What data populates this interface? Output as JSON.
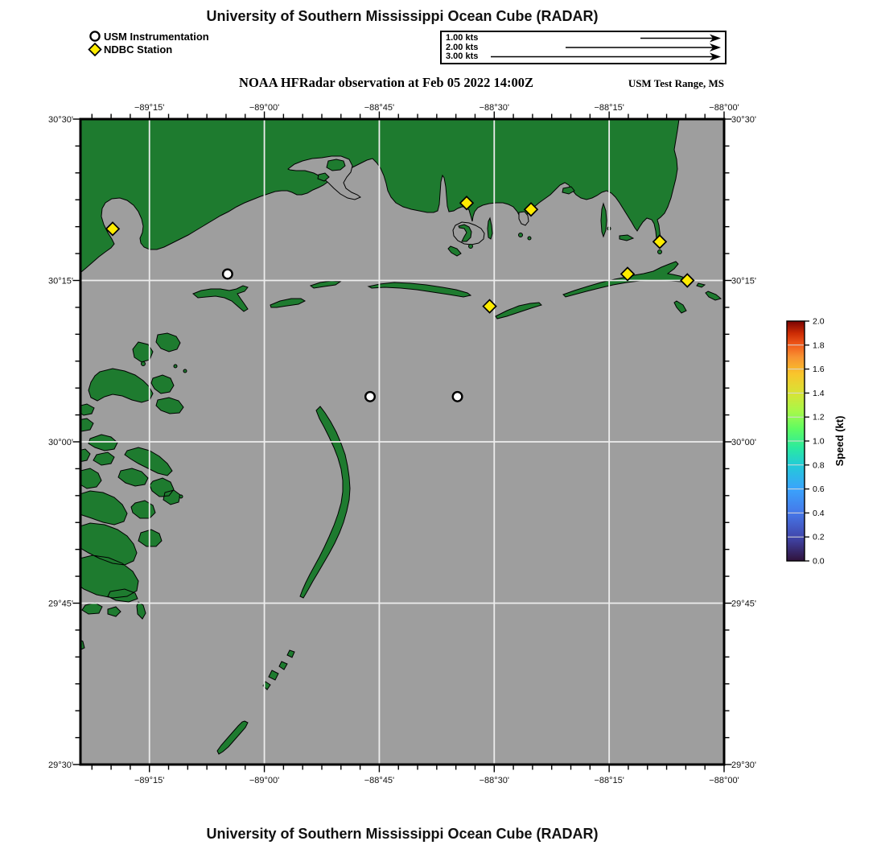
{
  "header": {
    "title": "University of Southern Mississippi Ocean Cube (RADAR)",
    "subtitle": "NOAA HFRadar observation at Feb 05 2022 14:00Z",
    "subtitle_right": "USM Test Range, MS"
  },
  "footer": {
    "title": "University of Southern Mississippi Ocean Cube (RADAR)"
  },
  "legend": {
    "items": [
      {
        "symbol": "circle-icon",
        "label": "USM Instrumentation"
      },
      {
        "symbol": "diamond-icon",
        "label": "NDBC Station"
      }
    ]
  },
  "scale_box": {
    "rows": [
      {
        "label": "1.00 kts",
        "kts": 1
      },
      {
        "label": "2.00 kts",
        "kts": 2
      },
      {
        "label": "3.00 kts",
        "kts": 3
      }
    ]
  },
  "map": {
    "lon_min": -89.4,
    "lon_max": -88.0,
    "lat_min": 29.5,
    "lat_max": 30.5,
    "lon_ticks": [
      {
        "value": -89.25,
        "label": "−89°15'"
      },
      {
        "value": -89.0,
        "label": "−89°00'"
      },
      {
        "value": -88.75,
        "label": "−88°45'"
      },
      {
        "value": -88.5,
        "label": "−88°30'"
      },
      {
        "value": -88.25,
        "label": "−88°15'"
      },
      {
        "value": -88.0,
        "label": "−88°00'"
      }
    ],
    "lat_ticks": [
      {
        "value": 30.5,
        "label": "30°30'"
      },
      {
        "value": 30.25,
        "label": "30°15'"
      },
      {
        "value": 30.0,
        "label": "30°00'"
      },
      {
        "value": 29.75,
        "label": "29°45'"
      },
      {
        "value": 29.5,
        "label": "29°30'"
      }
    ],
    "minor_tick_deg": 0.041666667,
    "colors": {
      "land": "#1e7b2f",
      "water": "#9e9e9e",
      "grid": "#ededed",
      "coast_outline": "#000000",
      "usm_marker": "#ffffff",
      "ndbc_marker": "#ffec00"
    }
  },
  "colorbar": {
    "title": "Speed (kt)",
    "min": 0.0,
    "max": 2.0,
    "tick_step": 0.2,
    "tick_labels": [
      "0.0",
      "0.2",
      "0.4",
      "0.6",
      "0.8",
      "1.0",
      "1.2",
      "1.4",
      "1.6",
      "1.8",
      "2.0"
    ],
    "stops": [
      {
        "t": 0.0,
        "color": "#30123b"
      },
      {
        "t": 0.1,
        "color": "#4147ad"
      },
      {
        "t": 0.2,
        "color": "#4678e9"
      },
      {
        "t": 0.3,
        "color": "#3aa3fc"
      },
      {
        "t": 0.4,
        "color": "#23cbd8"
      },
      {
        "t": 0.47,
        "color": "#2ae9a1"
      },
      {
        "t": 0.55,
        "color": "#5dfb62"
      },
      {
        "t": 0.62,
        "color": "#a4f94a"
      },
      {
        "t": 0.7,
        "color": "#d8e335"
      },
      {
        "t": 0.78,
        "color": "#f9c52c"
      },
      {
        "t": 0.85,
        "color": "#f79332"
      },
      {
        "t": 0.9,
        "color": "#f25c1c"
      },
      {
        "t": 0.95,
        "color": "#cc2b04"
      },
      {
        "t": 1.0,
        "color": "#7a0403"
      }
    ]
  },
  "chart_data": {
    "type": "map",
    "title": "University of Southern Mississippi Ocean Cube (RADAR)",
    "subtitle": "NOAA HFRadar observation at Feb 05 2022 14:00Z",
    "region_label": "USM Test Range, MS",
    "lon_range": [
      -89.4,
      -88.0
    ],
    "lat_range": [
      29.5,
      30.5
    ],
    "grid": "on",
    "colorbar": {
      "label": "Speed (kt)",
      "range": [
        0.0,
        2.0
      ],
      "tick_step": 0.2
    },
    "stations": {
      "usm_instrumentation": [
        {
          "lon": -89.08,
          "lat": 30.26
        },
        {
          "lon": -88.77,
          "lat": 30.07
        },
        {
          "lon": -88.58,
          "lat": 30.07
        }
      ],
      "ndbc": [
        {
          "lon": -89.33,
          "lat": 30.33
        },
        {
          "lon": -88.56,
          "lat": 30.37
        },
        {
          "lon": -88.42,
          "lat": 30.36
        },
        {
          "lon": -88.14,
          "lat": 30.31
        },
        {
          "lon": -88.21,
          "lat": 30.26
        },
        {
          "lon": -88.08,
          "lat": 30.25
        },
        {
          "lon": -88.51,
          "lat": 30.21
        }
      ]
    }
  }
}
